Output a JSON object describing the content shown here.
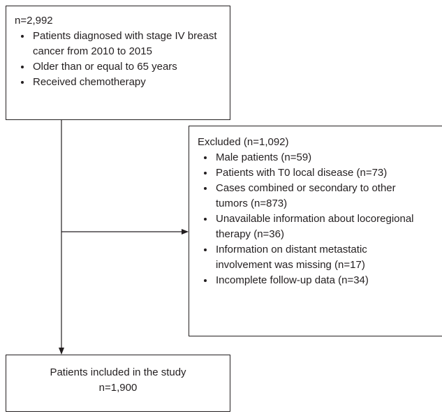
{
  "nodes": [
    {
      "title": "n=2,992",
      "items": [
        "Patients diagnosed with stage IV breast cancer from 2010 to 2015",
        "Older than or equal to 65 years",
        "Received chemotherapy"
      ]
    },
    {
      "title": "Excluded (n=1,092)",
      "items": [
        "Male patients (n=59)",
        "Patients with T0 local disease (n=73)",
        "Cases combined or secondary to other tumors (n=873)",
        "Unavailable information about locoregional therapy (n=36)",
        "Information on distant metastatic involvement was missing (n=17)",
        "Incomplete follow-up data (n=34)"
      ]
    },
    {
      "title": "Patients included in the study",
      "items": [
        "n=1,900"
      ]
    }
  ]
}
